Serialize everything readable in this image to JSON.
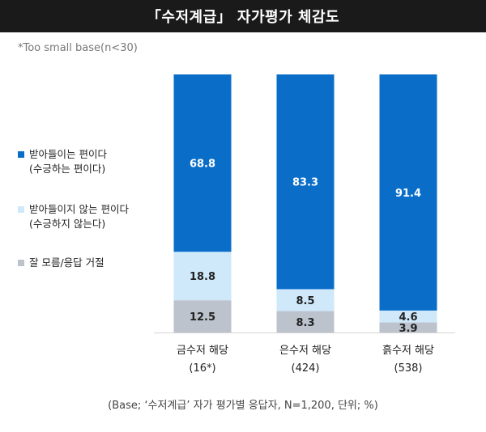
{
  "header": {
    "title": "「수저계급」 자가평가 체감도"
  },
  "note": "*Too small base(n<30)",
  "source": "(Base; ‘수저계급’ 자가 평가별 응답자, N=1,200, 단위; %)",
  "colors": {
    "accept": "#0a6ec9",
    "reject": "#cfe9fb",
    "unknown": "#bcc3cc"
  },
  "chart_data": {
    "type": "bar",
    "stacked": true,
    "orientation": "vertical",
    "categories": [
      "금수저 해당",
      "은수저 해당",
      "흙수저 해당"
    ],
    "category_bases": [
      "(16*)",
      "(424)",
      "(538)"
    ],
    "series": [
      {
        "name": "잘 모름/응답 거절",
        "label_lines": [
          "잘 모름/응답 거절"
        ],
        "values": [
          12.5,
          8.3,
          3.9
        ],
        "labels": [
          "12.5",
          "8.3",
          "3.9"
        ]
      },
      {
        "name": "받아들이지 않는 편이다 (수긍하지 않는다)",
        "label_lines": [
          "받아들이지 않는 편이다",
          "(수긍하지 않는다)"
        ],
        "values": [
          18.8,
          8.5,
          4.6
        ],
        "labels": [
          "18.8",
          "8.5",
          "4.6"
        ]
      },
      {
        "name": "받아들이는 편이다 (수긍하는 편이다)",
        "label_lines": [
          "받아들이는 편이다",
          "(수긍하는 편이다)"
        ],
        "values": [
          68.8,
          83.3,
          91.4
        ],
        "labels": [
          "68.8",
          "83.3",
          "91.4"
        ]
      }
    ],
    "ylim": [
      0,
      100
    ],
    "title": "「수저계급」 자가평가 체감도",
    "xlabel": "",
    "ylabel": "",
    "grid": false,
    "legend_position": "left"
  }
}
